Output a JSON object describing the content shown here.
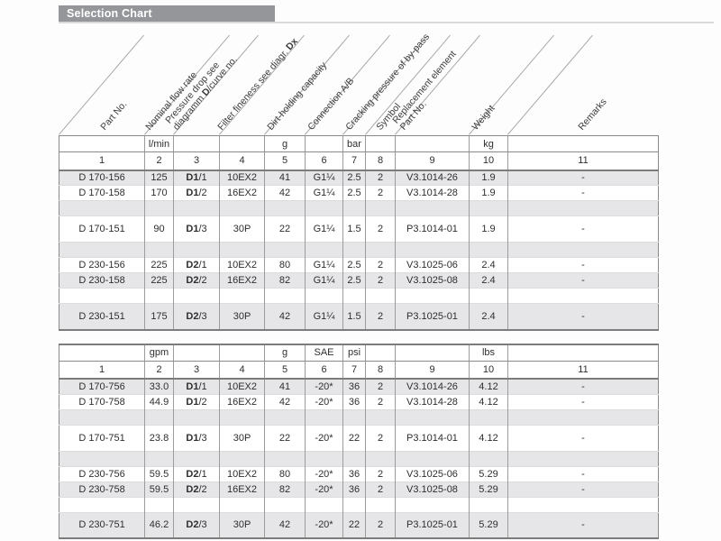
{
  "title_bar": {
    "label": "Selection Chart"
  },
  "columns": [
    {
      "num": "1",
      "header_lines": [
        "Part No."
      ]
    },
    {
      "num": "2",
      "header_lines": [
        "Nominal flow rate"
      ]
    },
    {
      "num": "3",
      "header_lines": [
        "Pressure drop see",
        {
          "pre": "diagramm ",
          "bold": "D",
          "post": "/curve no."
        }
      ]
    },
    {
      "num": "4",
      "header_lines": [
        {
          "pre": "Filter fineness see diagr. ",
          "bold": "Dx",
          "post": ""
        }
      ]
    },
    {
      "num": "5",
      "header_lines": [
        "Dirt-holding capacity"
      ]
    },
    {
      "num": "6",
      "header_lines": [
        "Connection A/B"
      ]
    },
    {
      "num": "7",
      "header_lines": [
        "Cracking pressure of by-pass"
      ]
    },
    {
      "num": "8",
      "header_lines": [
        "Symbol"
      ]
    },
    {
      "num": "9",
      "header_lines": [
        "Replacement element",
        "Part No."
      ]
    },
    {
      "num": "10",
      "header_lines": [
        "Weight"
      ]
    },
    {
      "num": "11",
      "header_lines": [
        "Remarks"
      ]
    }
  ],
  "tables": [
    {
      "name": "metric",
      "units": [
        "",
        "l/min",
        "",
        "",
        "g",
        "",
        "bar",
        "",
        "",
        "kg",
        ""
      ],
      "rows": [
        {
          "shaded": true,
          "tall": false,
          "cells": [
            "D 170-156",
            "125",
            {
              "bold": "D1",
              "text": "/1"
            },
            "10EX2",
            "41",
            "G1¼",
            "2.5",
            "2",
            "V3.1014-26",
            "1.9",
            "-"
          ]
        },
        {
          "shaded": false,
          "tall": false,
          "cells": [
            "D 170-158",
            "170",
            {
              "bold": "D1",
              "text": "/2"
            },
            "16EX2",
            "42",
            "G1¼",
            "2.5",
            "2",
            "V3.1014-28",
            "1.9",
            "-"
          ]
        },
        {
          "shaded": true,
          "tall": false,
          "cells": [
            "",
            "",
            "",
            "",
            "",
            "",
            "",
            "",
            "",
            "",
            ""
          ]
        },
        {
          "shaded": false,
          "tall": true,
          "cells": [
            "D 170-151",
            "90",
            {
              "bold": "D1",
              "text": "/3"
            },
            "30P",
            "22",
            "G1¼",
            "1.5",
            "2",
            "P3.1014-01",
            "1.9",
            "-"
          ]
        },
        {
          "shaded": true,
          "tall": false,
          "cells": [
            "",
            "",
            "",
            "",
            "",
            "",
            "",
            "",
            "",
            "",
            ""
          ]
        },
        {
          "shaded": false,
          "tall": false,
          "cells": [
            "D 230-156",
            "225",
            {
              "bold": "D2",
              "text": "/1"
            },
            "10EX2",
            "80",
            "G1¼",
            "2.5",
            "2",
            "V3.1025-06",
            "2.4",
            "-"
          ]
        },
        {
          "shaded": true,
          "tall": false,
          "cells": [
            "D 230-158",
            "225",
            {
              "bold": "D2",
              "text": "/2"
            },
            "16EX2",
            "82",
            "G1¼",
            "2.5",
            "2",
            "V3.1025-08",
            "2.4",
            "-"
          ]
        },
        {
          "shaded": false,
          "tall": false,
          "cells": [
            "",
            "",
            "",
            "",
            "",
            "",
            "",
            "",
            "",
            "",
            ""
          ]
        },
        {
          "shaded": true,
          "tall": true,
          "cells": [
            "D 230-151",
            "175",
            {
              "bold": "D2",
              "text": "/3"
            },
            "30P",
            "42",
            "G1¼",
            "1.5",
            "2",
            "P3.1025-01",
            "2.4",
            "-"
          ]
        }
      ]
    },
    {
      "name": "us",
      "units": [
        "",
        "gpm",
        "",
        "",
        "g",
        "SAE",
        "psi",
        "",
        "",
        "lbs",
        ""
      ],
      "rows": [
        {
          "shaded": true,
          "tall": false,
          "cells": [
            "D 170-756",
            "33.0",
            {
              "bold": "D1",
              "text": "/1"
            },
            "10EX2",
            "41",
            "-20*",
            "36",
            "2",
            "V3.1014-26",
            "4.12",
            "-"
          ]
        },
        {
          "shaded": false,
          "tall": false,
          "cells": [
            "D 170-758",
            "44.9",
            {
              "bold": "D1",
              "text": "/2"
            },
            "16EX2",
            "42",
            "-20*",
            "36",
            "2",
            "V3.1014-28",
            "4.12",
            "-"
          ]
        },
        {
          "shaded": true,
          "tall": false,
          "cells": [
            "",
            "",
            "",
            "",
            "",
            "",
            "",
            "",
            "",
            "",
            ""
          ]
        },
        {
          "shaded": false,
          "tall": true,
          "cells": [
            "D 170-751",
            "23.8",
            {
              "bold": "D1",
              "text": "/3"
            },
            "30P",
            "22",
            "-20*",
            "22",
            "2",
            "P3.1014-01",
            "4.12",
            "-"
          ]
        },
        {
          "shaded": true,
          "tall": false,
          "cells": [
            "",
            "",
            "",
            "",
            "",
            "",
            "",
            "",
            "",
            "",
            ""
          ]
        },
        {
          "shaded": false,
          "tall": false,
          "cells": [
            "D 230-756",
            "59.5",
            {
              "bold": "D2",
              "text": "/1"
            },
            "10EX2",
            "80",
            "-20*",
            "36",
            "2",
            "V3.1025-06",
            "5.29",
            "-"
          ]
        },
        {
          "shaded": true,
          "tall": false,
          "cells": [
            "D 230-758",
            "59.5",
            {
              "bold": "D2",
              "text": "/2"
            },
            "16EX2",
            "82",
            "-20*",
            "36",
            "2",
            "V3.1025-08",
            "5.29",
            "-"
          ]
        },
        {
          "shaded": false,
          "tall": false,
          "cells": [
            "",
            "",
            "",
            "",
            "",
            "",
            "",
            "",
            "",
            "",
            ""
          ]
        },
        {
          "shaded": true,
          "tall": true,
          "cells": [
            "D 230-751",
            "46.2",
            {
              "bold": "D2",
              "text": "/3"
            },
            "30P",
            "42",
            "-20*",
            "22",
            "2",
            "P3.1025-01",
            "5.29",
            "-"
          ]
        }
      ]
    }
  ]
}
